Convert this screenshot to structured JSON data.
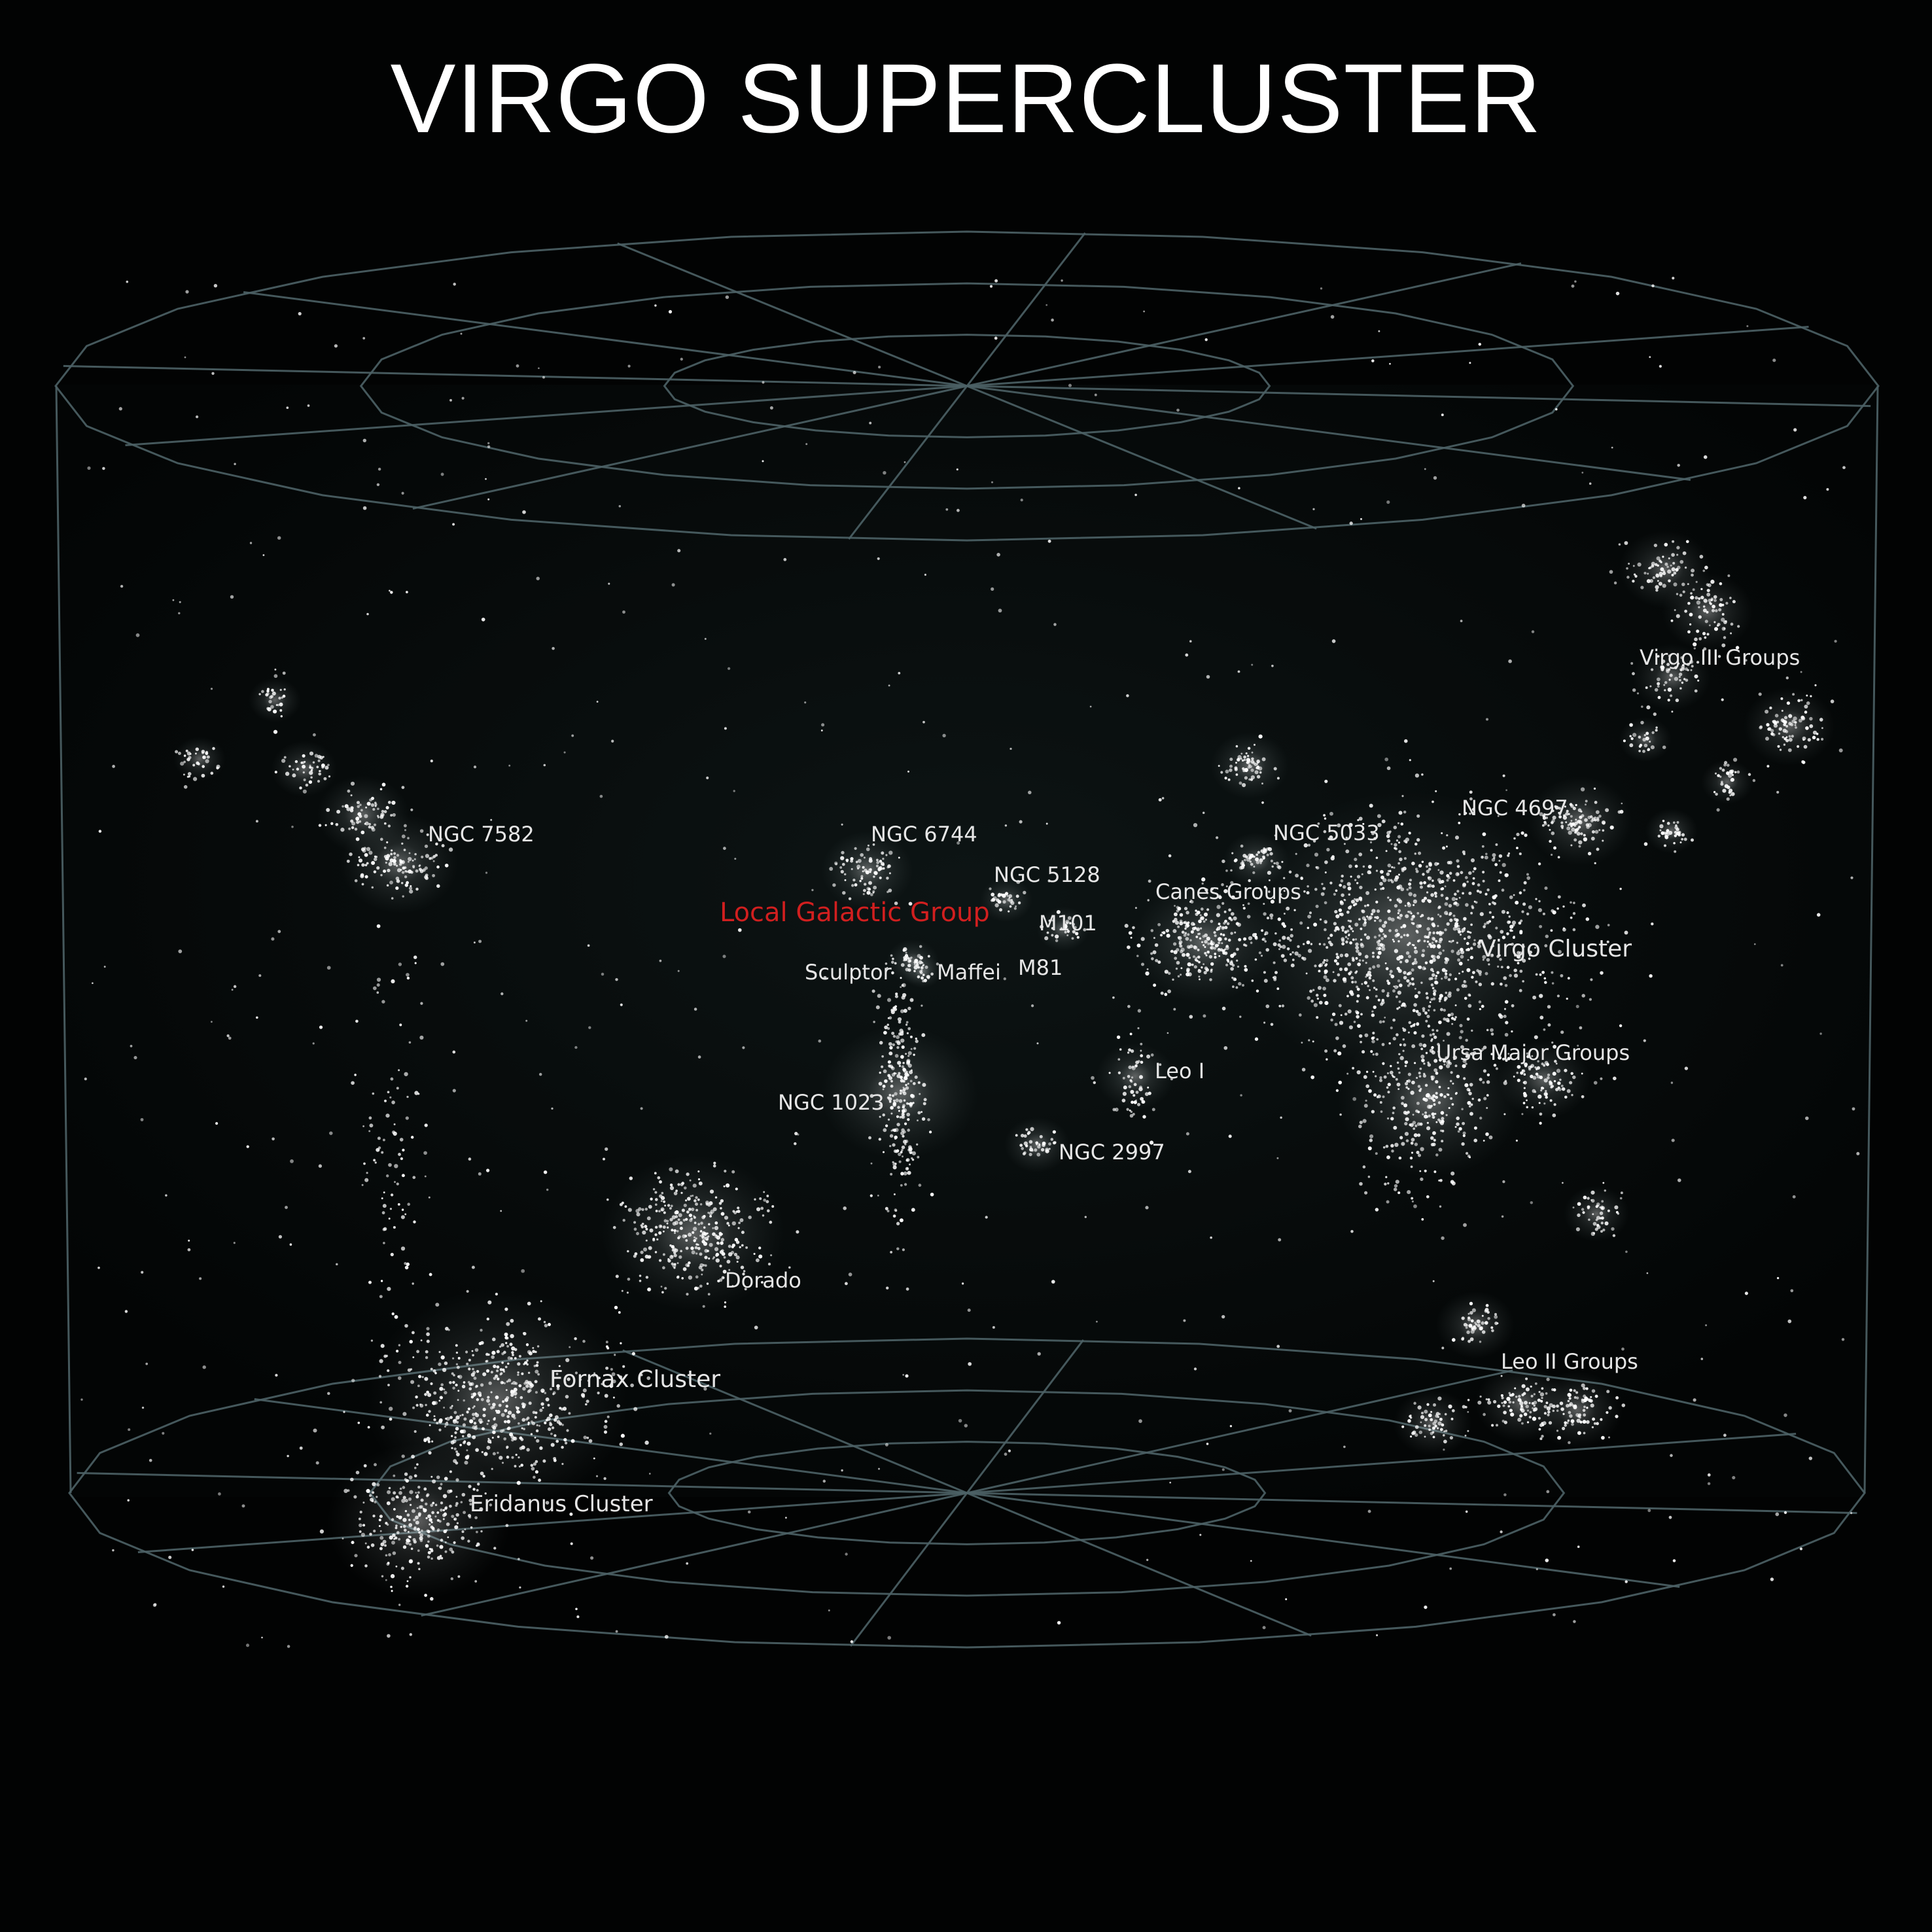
{
  "title": "VIRGO SUPERCLUSTER",
  "colors": {
    "background": "#020303",
    "grid_line": "#4d6266",
    "galaxy_dot": "#ffffff",
    "label": "#e6e6e6",
    "highlight_label": "#d11f1f"
  },
  "labels": {
    "ngc7582": "NGC 7582",
    "ngc6744": "NGC 6744",
    "ngc5128": "NGC 5128",
    "local_group": "Local Galactic Group",
    "m101": "M101",
    "m81": "M81",
    "sculptor": "Sculptor",
    "maffei": "Maffei",
    "ngc5033": "NGC 5033",
    "canes": "Canes Groups",
    "ngc4697": "NGC 4697",
    "virgo_cluster": "Virgo Cluster",
    "virgo_iii": "Virgo III Groups",
    "ursa_major": "Ursa Major Groups",
    "leo_i": "Leo I",
    "ngc1023": "NGC 1023",
    "ngc2997": "NGC 2997",
    "dorado": "Dorado",
    "fornax": "Fornax Cluster",
    "eridanus": "Eridanus Cluster",
    "leo_ii": "Leo II Groups"
  }
}
